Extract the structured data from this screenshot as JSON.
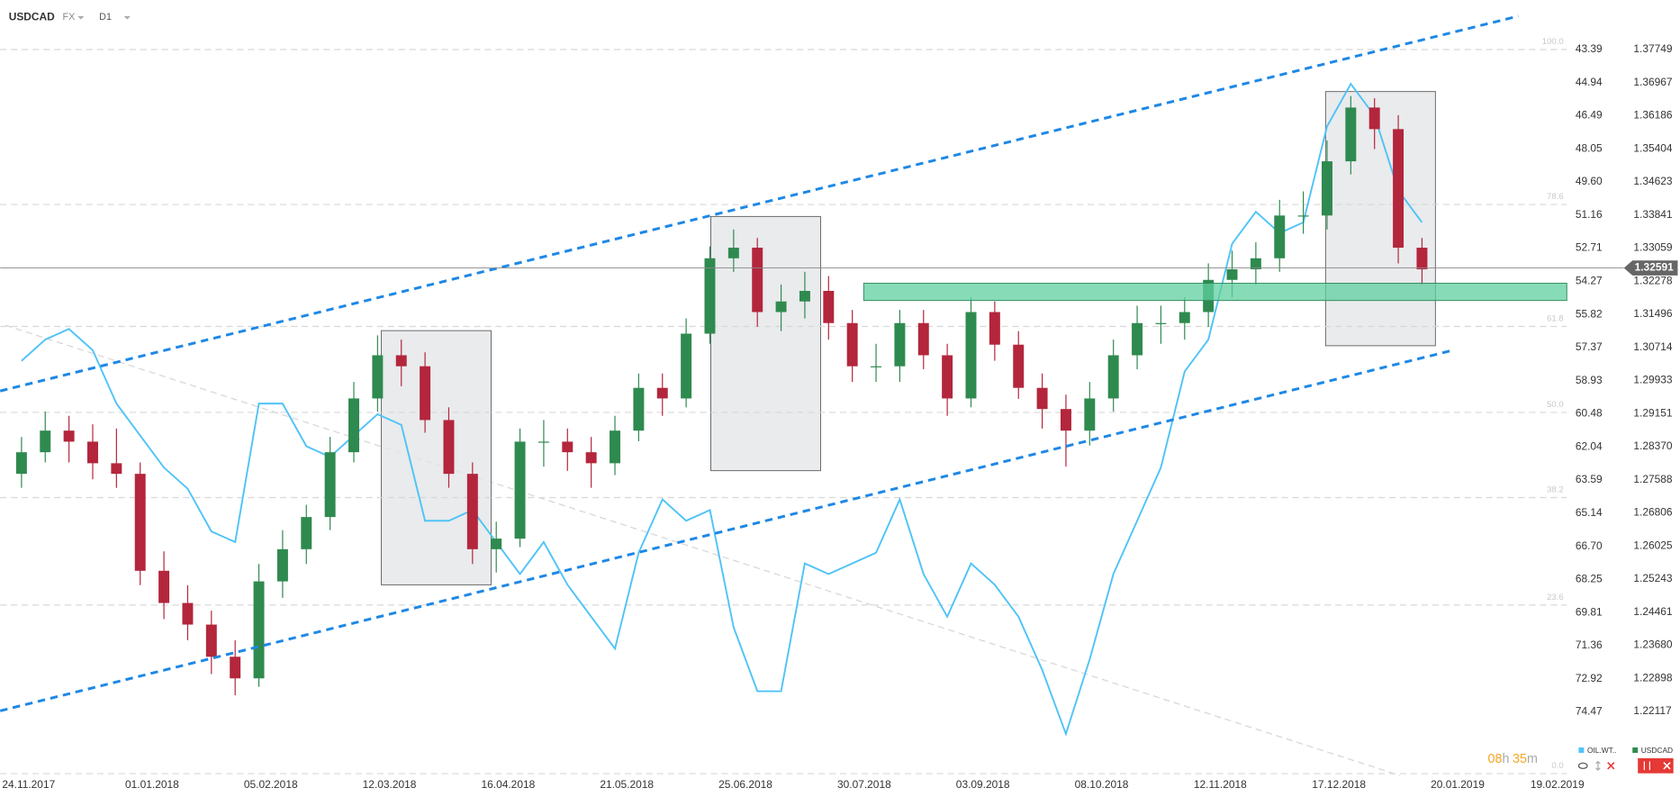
{
  "chart_data": {
    "type": "candlestick",
    "symbol": "USDCAD",
    "market": "FX",
    "timeframe": "D1",
    "xlim": [
      "16.11.2017",
      "21.02.2019"
    ],
    "xticks": [
      "24.11.2017",
      "01.01.2018",
      "05.02.2018",
      "12.03.2018",
      "16.04.2018",
      "21.05.2018",
      "25.06.2018",
      "30.07.2018",
      "03.09.2018",
      "08.10.2018",
      "12.11.2018",
      "17.12.2018",
      "20.01.2019",
      "19.02.2019"
    ],
    "ylim": [
      1.20607,
      1.38207
    ],
    "yticks": [
      1.37749,
      1.36967,
      1.36186,
      1.35404,
      1.34623,
      1.33841,
      1.33059,
      1.32278,
      1.31496,
      1.30714,
      1.29933,
      1.29151,
      {
        "value": 1.2837,
        "label": "1.28370"
      },
      1.27588,
      1.26806,
      1.26025,
      1.25243,
      1.24461,
      {
        "value": 1.2368,
        "label": "1.23680"
      },
      1.22898,
      1.22117
    ],
    "y2lim": [
      77.45,
      42.48
    ],
    "y2ticks": [
      43.39,
      44.94,
      46.49,
      48.05,
      {
        "value": 49.6,
        "label": "49.60"
      },
      51.16,
      52.71,
      54.27,
      55.82,
      57.37,
      58.93,
      60.48,
      62.04,
      63.59,
      65.14,
      {
        "value": 66.7,
        "label": "66.70"
      },
      68.25,
      69.81,
      71.36,
      72.92,
      74.47
    ],
    "last_price": 1.32591,
    "fib_levels": [
      {
        "value": 100,
        "label": "100.0",
        "price": 1.37749
      },
      {
        "value": 78.6,
        "price": 1.3409
      },
      {
        "value": 61.8,
        "price": 1.3121
      },
      {
        "value": 50,
        "label": "50.0",
        "price": 1.2918
      },
      {
        "value": 38.2,
        "price": 1.2717
      },
      {
        "value": 23.6,
        "price": 1.2463
      },
      {
        "value": 0,
        "label": "0.0",
        "price": 1.2065
      }
    ],
    "timer": {
      "hours": "08",
      "hours_unit": "h",
      "minutes": "35",
      "minutes_unit": "m"
    },
    "x": [
      "20.11.2017",
      "27.11.2017",
      "04.12.2017",
      "11.12.2017",
      "18.12.2017",
      "25.12.2017",
      "01.01.2018",
      "08.01.2018",
      "15.01.2018",
      "22.01.2018",
      "29.01.2018",
      "05.02.2018",
      "12.02.2018",
      "19.02.2018",
      "26.02.2018",
      "05.03.2018",
      "12.03.2018",
      "19.03.2018",
      "26.03.2018",
      "02.04.2018",
      "09.04.2018",
      "16.04.2018",
      "23.04.2018",
      "30.04.2018",
      "07.05.2018",
      "14.05.2018",
      "21.05.2018",
      "28.05.2018",
      "04.06.2018",
      "11.06.2018",
      "18.06.2018",
      "25.06.2018",
      "02.07.2018",
      "09.07.2018",
      "16.07.2018",
      "23.07.2018",
      "30.07.2018",
      "06.08.2018",
      "13.08.2018",
      "20.08.2018",
      "27.08.2018",
      "03.09.2018",
      "10.09.2018",
      "17.09.2018",
      "24.09.2018",
      "01.10.2018",
      "08.10.2018",
      "15.10.2018",
      "22.10.2018",
      "29.10.2018",
      "05.11.2018",
      "12.11.2018",
      "19.11.2018",
      "26.11.2018",
      "03.12.2018",
      "10.12.2018",
      "17.12.2018",
      "24.12.2018",
      "31.12.2018",
      "07.01.2019"
    ],
    "series": [
      {
        "name": "OIL.WT..",
        "type": "line",
        "axis": "y2",
        "color": "#4fc3f7",
        "values": [
          58.0,
          57,
          56.5,
          57.5,
          60,
          61.5,
          63,
          64,
          66,
          66.5,
          60,
          60,
          62,
          62.5,
          61.5,
          60.5,
          61,
          65.5,
          65.5,
          65,
          66.5,
          68,
          66.5,
          68.5,
          70,
          71.5,
          67,
          64.5,
          65.5,
          65,
          70.5,
          73.5,
          73.5,
          67.5,
          68,
          67.5,
          67,
          64.5,
          68,
          70,
          67.5,
          68.5,
          70,
          72.5,
          75.5,
          72,
          68,
          65.5,
          63,
          58.5,
          57,
          52.5,
          51,
          52,
          51.5,
          47,
          45,
          46.5,
          50,
          51.5
        ]
      },
      {
        "name": "USDCAD",
        "type": "candlestick",
        "color": "#2f8a4f",
        "down_color": "#b3263c",
        "open": [
          1.2773,
          1.2824,
          1.2875,
          1.2849,
          1.2798,
          1.2773,
          1.2544,
          1.2468,
          1.2417,
          1.2341,
          1.229,
          1.2519,
          1.2595,
          1.2671,
          1.2824,
          1.2951,
          1.3053,
          1.3027,
          1.29,
          1.2773,
          1.2595,
          1.262,
          1.2849,
          1.2849,
          1.2824,
          1.2798,
          1.2875,
          1.2976,
          1.2951,
          1.3104,
          1.3282,
          1.3307,
          1.3155,
          1.318,
          1.3205,
          1.3129,
          1.3027,
          1.3027,
          1.3129,
          1.3053,
          1.2951,
          1.3155,
          1.3078,
          1.2976,
          1.2926,
          1.2875,
          1.2951,
          1.3053,
          1.3129,
          1.3129,
          1.3155,
          1.3231,
          1.3256,
          1.3282,
          1.3383,
          1.3383,
          1.3511,
          1.3638,
          1.3587,
          1.3307
        ],
        "high": [
          1.286,
          1.292,
          1.291,
          1.289,
          1.288,
          1.28,
          1.259,
          1.251,
          1.245,
          1.238,
          1.256,
          1.264,
          1.27,
          1.286,
          1.299,
          1.31,
          1.309,
          1.306,
          1.293,
          1.28,
          1.266,
          1.288,
          1.29,
          1.288,
          1.286,
          1.291,
          1.301,
          1.301,
          1.314,
          1.331,
          1.335,
          1.333,
          1.322,
          1.325,
          1.324,
          1.316,
          1.308,
          1.316,
          1.316,
          1.308,
          1.319,
          1.318,
          1.311,
          1.301,
          1.296,
          1.299,
          1.309,
          1.317,
          1.317,
          1.319,
          1.327,
          1.33,
          1.332,
          1.342,
          1.344,
          1.356,
          1.3665,
          1.366,
          1.362,
          1.333
        ],
        "low": [
          1.274,
          1.28,
          1.28,
          1.276,
          1.274,
          1.251,
          1.243,
          1.238,
          1.23,
          1.225,
          1.227,
          1.248,
          1.256,
          1.264,
          1.28,
          1.292,
          1.298,
          1.287,
          1.274,
          1.256,
          1.254,
          1.26,
          1.279,
          1.278,
          1.274,
          1.277,
          1.285,
          1.291,
          1.293,
          1.308,
          1.325,
          1.312,
          1.311,
          1.314,
          1.309,
          1.299,
          1.299,
          1.299,
          1.302,
          1.291,
          1.293,
          1.304,
          1.295,
          1.288,
          1.279,
          1.284,
          1.292,
          1.302,
          1.308,
          1.309,
          1.312,
          1.319,
          1.322,
          1.325,
          1.334,
          1.335,
          1.348,
          1.354,
          1.327,
          1.322
        ],
        "close": [
          1.2824,
          1.2875,
          1.2849,
          1.2798,
          1.2773,
          1.2544,
          1.2468,
          1.2417,
          1.2341,
          1.229,
          1.2519,
          1.2595,
          1.2671,
          1.2824,
          1.2951,
          1.3053,
          1.3027,
          1.29,
          1.2773,
          1.2595,
          1.262,
          1.2849,
          1.2849,
          1.2824,
          1.2798,
          1.2875,
          1.2976,
          1.2951,
          1.3104,
          1.3282,
          1.3307,
          1.3155,
          1.318,
          1.3205,
          1.3129,
          1.3027,
          1.3027,
          1.3129,
          1.3053,
          1.2951,
          1.3155,
          1.3078,
          1.2976,
          1.2926,
          1.2875,
          1.2951,
          1.3053,
          1.3129,
          1.3129,
          1.3155,
          1.3231,
          1.3256,
          1.3282,
          1.3383,
          1.3383,
          1.3511,
          1.3638,
          1.3587,
          1.3307,
          1.3256
        ]
      }
    ]
  }
}
